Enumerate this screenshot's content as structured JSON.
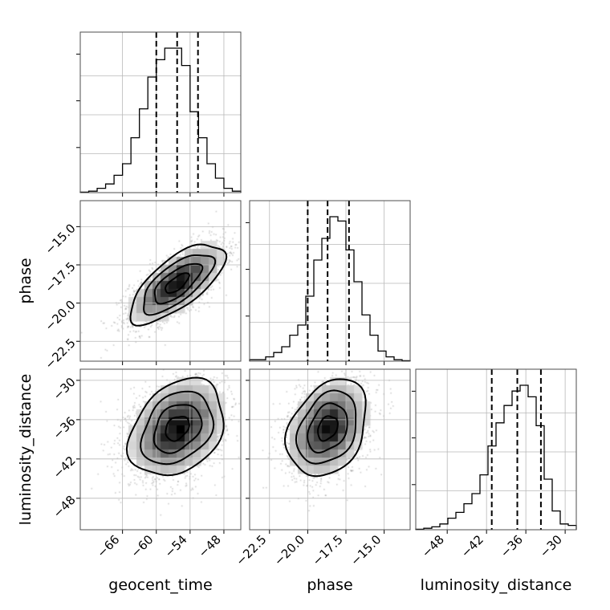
{
  "chart_data": {
    "type": "corner",
    "parameters": [
      {
        "name": "geocent_time",
        "label": "geocent_time",
        "range": [
          -73.5,
          -45.0
        ],
        "ticks": [
          -66,
          -60,
          -54,
          -48
        ],
        "tick_labels": [
          "−66",
          "−60",
          "−54",
          "−48"
        ],
        "quantiles": [
          -60.0,
          -56.3,
          -52.6
        ],
        "histogram": {
          "bin_edges": [
            -73.5,
            -72.0,
            -70.5,
            -69.0,
            -67.5,
            -66.0,
            -64.5,
            -63.0,
            -61.5,
            -60.0,
            -58.5,
            -57.0,
            -55.5,
            -54.0,
            -52.5,
            -51.0,
            -49.5,
            -48.0,
            -46.5,
            -45.0
          ],
          "counts": [
            0.3,
            1,
            3,
            6,
            12,
            20,
            38,
            58,
            80,
            92,
            100,
            100,
            88,
            56,
            38,
            20,
            10,
            3,
            1
          ]
        }
      },
      {
        "name": "phase",
        "label": "phase",
        "range": [
          -23.8,
          -13.3
        ],
        "ticks": [
          -22.5,
          -20.0,
          -17.5,
          -15.0
        ],
        "tick_labels": [
          "−22.5",
          "−20.0",
          "−17.5",
          "−15.0"
        ],
        "quantiles": [
          -20.0,
          -18.7,
          -17.3
        ],
        "histogram": {
          "bin_edges": [
            -23.8,
            -23.275,
            -22.75,
            -22.225,
            -21.7,
            -21.175,
            -20.65,
            -20.125,
            -19.6,
            -19.075,
            -18.55,
            -18.025,
            -17.5,
            -16.975,
            -16.45,
            -15.925,
            -15.4,
            -14.875,
            -14.35,
            -13.825,
            -13.3
          ],
          "counts": [
            1,
            1,
            3,
            6,
            10,
            18,
            25,
            45,
            70,
            85,
            100,
            97,
            77,
            55,
            32,
            18,
            7,
            3,
            1,
            0.3
          ]
        }
      },
      {
        "name": "luminosity_distance",
        "label": "luminosity_distance",
        "range": [
          -52.8,
          -28.3
        ],
        "ticks": [
          -48,
          -42,
          -36,
          -30
        ],
        "tick_labels": [
          "−48",
          "−42",
          "−36",
          "−30"
        ],
        "quantiles": [
          -41.2,
          -37.3,
          -33.7
        ],
        "histogram": {
          "bin_edges": [
            -52.8,
            -51.575,
            -50.35,
            -49.125,
            -47.9,
            -46.675,
            -45.45,
            -44.225,
            -43.0,
            -41.775,
            -40.55,
            -39.325,
            -38.1,
            -36.875,
            -35.65,
            -34.425,
            -33.2,
            -31.975,
            -30.75,
            -29.525,
            -28.3
          ],
          "counts": [
            0.3,
            1,
            2,
            4,
            8,
            12,
            18,
            25,
            38,
            58,
            74,
            86,
            96,
            100,
            92,
            72,
            35,
            13,
            4,
            3
          ]
        }
      }
    ],
    "pairs": [
      {
        "x": "geocent_time",
        "y": "phase",
        "center": [
          -56.3,
          -18.7
        ],
        "sigma": [
          4.2,
          1.3
        ],
        "corr": 0.7
      },
      {
        "x": "geocent_time",
        "y": "luminosity_distance",
        "center": [
          -56.3,
          -37.3
        ],
        "sigma": [
          4.2,
          3.7
        ],
        "corr": 0.3
      },
      {
        "x": "phase",
        "y": "luminosity_distance",
        "center": [
          -18.7,
          -37.3
        ],
        "sigma": [
          1.3,
          3.7
        ],
        "corr": 0.3
      }
    ],
    "contour_levels": [
      0.118,
      0.393,
      0.675,
      0.865
    ],
    "grid": true,
    "legend": "none"
  }
}
